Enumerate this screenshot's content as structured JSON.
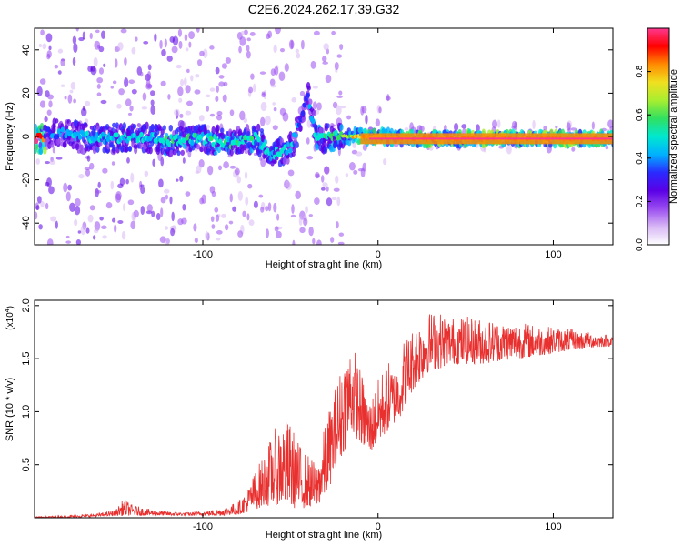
{
  "title": "C2E6.2024.262.17.39.G32",
  "colors": {
    "snr_line": "#e8302f",
    "axis": "#000000",
    "colormap": [
      "#ffffff",
      "#d8b8f5",
      "#9a4cf0",
      "#5b00e6",
      "#2a2aff",
      "#00b0ff",
      "#00e8d0",
      "#30e060",
      "#a8ee30",
      "#f0e020",
      "#ff8a00",
      "#ff0000",
      "#ff3890"
    ]
  },
  "chart_data": [
    {
      "type": "heatmap",
      "xlabel": "Height of straight line (km)",
      "ylabel": "Frequency (Hz)",
      "xlim": [
        -196,
        134
      ],
      "ylim": [
        -50,
        50
      ],
      "x_ticks": [
        -100,
        0,
        100
      ],
      "x_tick_labels": [
        "-100",
        "0",
        "100"
      ],
      "y_ticks": [
        -40,
        -20,
        0,
        20,
        40
      ],
      "y_tick_labels": [
        "-40",
        "-20",
        "0",
        "20",
        "40"
      ],
      "colorbar": {
        "label": "Normalized spectral amplitude",
        "range": [
          0,
          1
        ],
        "ticks": [
          0.0,
          0.2,
          0.4,
          0.6,
          0.8
        ],
        "tick_labels": [
          "0.0",
          "0.2",
          "0.4",
          "0.6",
          "0.8"
        ]
      },
      "ridge": [
        {
          "x": -190,
          "f": 2,
          "a": 0.3
        },
        {
          "x": -175,
          "f": 1,
          "a": 0.4
        },
        {
          "x": -160,
          "f": -1,
          "a": 0.45
        },
        {
          "x": -140,
          "f": 0,
          "a": 0.45
        },
        {
          "x": -120,
          "f": -2,
          "a": 0.5
        },
        {
          "x": -100,
          "f": -1,
          "a": 0.5
        },
        {
          "x": -85,
          "f": -3,
          "a": 0.5
        },
        {
          "x": -70,
          "f": -1,
          "a": 0.5
        },
        {
          "x": -60,
          "f": -8,
          "a": 0.5
        },
        {
          "x": -50,
          "f": -5,
          "a": 0.45
        },
        {
          "x": -40,
          "f": 18,
          "a": 0.3
        },
        {
          "x": -35,
          "f": -2,
          "a": 0.5
        },
        {
          "x": -25,
          "f": 0,
          "a": 0.55
        },
        {
          "x": -10,
          "f": 0,
          "a": 0.8
        },
        {
          "x": 0,
          "f": 0,
          "a": 0.8
        },
        {
          "x": 20,
          "f": -1,
          "a": 0.85
        },
        {
          "x": 50,
          "f": -1,
          "a": 0.9
        },
        {
          "x": 80,
          "f": -1,
          "a": 0.9
        },
        {
          "x": 110,
          "f": -1,
          "a": 0.95
        },
        {
          "x": 134,
          "f": -1,
          "a": 0.95
        }
      ]
    },
    {
      "type": "line",
      "xlabel": "Height of straight line (km)",
      "ylabel": "SNR (10 * v/v)",
      "y_multiplier": "(x10",
      "y_multiplier_exp": "4",
      "y_multiplier_close": ")",
      "xlim": [
        -196,
        134
      ],
      "ylim": [
        0,
        2.05
      ],
      "x_ticks": [
        -100,
        0,
        100
      ],
      "x_tick_labels": [
        "-100",
        "0",
        "100"
      ],
      "y_ticks": [
        0.5,
        1.0,
        1.5,
        2.0
      ],
      "y_tick_labels": [
        "0.5",
        "1.0",
        "1.5",
        "2.0"
      ],
      "series": [
        {
          "x": [
            -196,
            -180,
            -160,
            -150,
            -145,
            -140,
            -130,
            -120,
            -110,
            -100,
            -90,
            -80,
            -75,
            -70,
            -65,
            -60,
            -55,
            -50,
            -45,
            -40,
            -35,
            -30,
            -25,
            -20,
            -15,
            -10,
            -5,
            0,
            5,
            10,
            15,
            20,
            25,
            30,
            35,
            40,
            45,
            50,
            60,
            70,
            80,
            90,
            100,
            110,
            120,
            134
          ],
          "env": [
            0.01,
            0.02,
            0.04,
            0.07,
            0.18,
            0.12,
            0.08,
            0.06,
            0.05,
            0.06,
            0.09,
            0.15,
            0.25,
            0.45,
            0.6,
            0.8,
            0.95,
            0.9,
            0.7,
            0.6,
            0.5,
            0.9,
            1.2,
            1.5,
            1.7,
            1.4,
            1.1,
            1.3,
            1.5,
            1.4,
            1.7,
            1.8,
            1.9,
            1.95,
            1.95,
            1.9,
            1.9,
            1.9,
            1.88,
            1.85,
            1.85,
            1.82,
            1.8,
            1.78,
            1.75,
            1.72
          ],
          "base": [
            0.0,
            0.0,
            0.01,
            0.02,
            0.02,
            0.02,
            0.02,
            0.02,
            0.02,
            0.02,
            0.02,
            0.03,
            0.05,
            0.08,
            0.1,
            0.12,
            0.12,
            0.1,
            0.08,
            0.1,
            0.1,
            0.2,
            0.4,
            0.6,
            0.8,
            0.7,
            0.6,
            0.7,
            0.8,
            0.9,
            1.0,
            1.2,
            1.3,
            1.4,
            1.4,
            1.45,
            1.45,
            1.45,
            1.45,
            1.48,
            1.5,
            1.52,
            1.55,
            1.58,
            1.6,
            1.62
          ]
        }
      ]
    }
  ]
}
